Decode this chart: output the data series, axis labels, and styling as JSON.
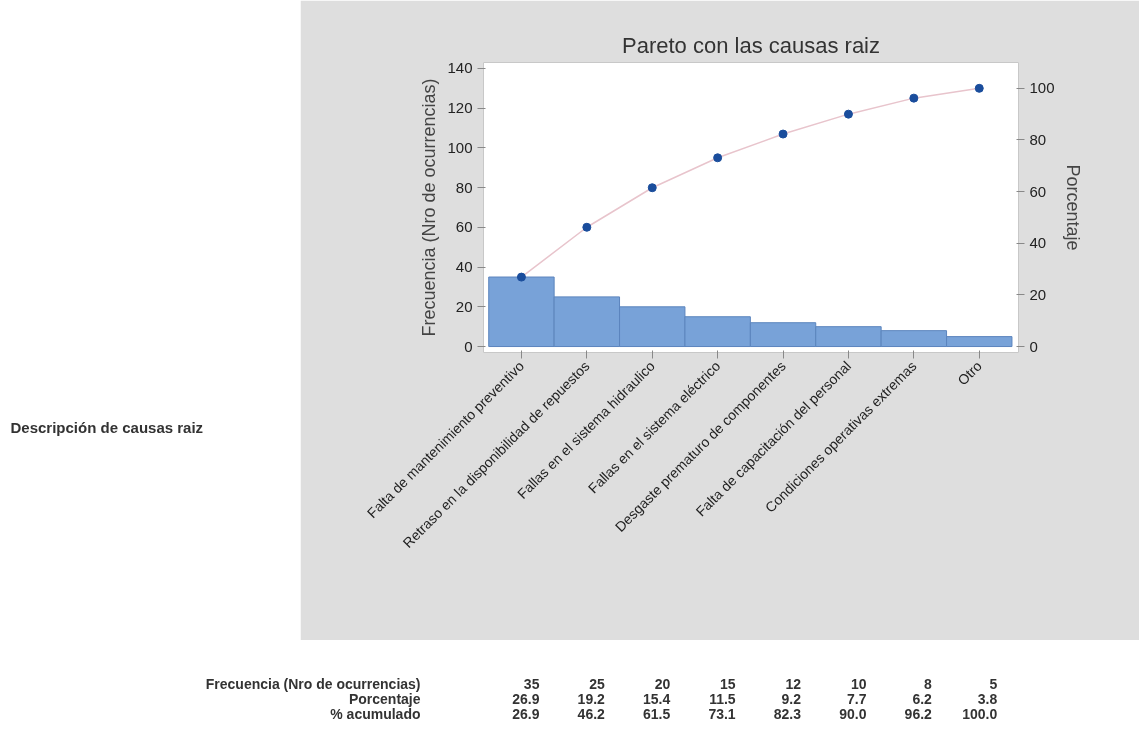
{
  "chart_data": {
    "type": "bar",
    "title": "Pareto con las causas raiz",
    "ylabel": "Frecuencia (Nro de ocurrencias)",
    "y2label": "Porcentaje",
    "categories": [
      "Falta de mantenimiento preventivo",
      "Retraso en la disponibilidad de repuestos",
      "Fallas en el sistema hidraulico",
      "Fallas en el sistema eléctrico",
      "Desgaste prematuro de componentes",
      "Falta de capacitación del personal",
      "Condiciones operativas extremas",
      "Otro"
    ],
    "series": [
      {
        "color": "#78a2d8",
        "values": [
          35,
          25,
          20,
          15,
          12,
          10,
          8,
          5
        ],
        "value_labels": [
          "35",
          "25",
          "20",
          "15",
          "12",
          "10",
          "8",
          "5"
        ]
      },
      {
        "type": "line",
        "axis": "y2",
        "color": "#1a4d9c",
        "marker": "circle",
        "values": [
          26.9,
          46.2,
          61.5,
          73.1,
          82.3,
          90.0,
          96.2,
          100.0
        ],
        "value_labels": [
          "26.9",
          "46.2",
          "61.5",
          "73.1",
          "82.3",
          "90.0",
          "96.2",
          "100.0"
        ]
      }
    ],
    "annotations": [
      "Descripción de causas raiz",
      "Frecuencia (Nro de ocurrencias)",
      "Porcentaje",
      "% acumulado",
      "26.9",
      "19.2",
      "15.4",
      "11.5",
      "9.2",
      "7.7",
      "6.2",
      "3.8"
    ],
    "ylim": [
      -3,
      143
    ],
    "yticks": [
      0,
      20,
      40,
      60,
      80,
      100,
      120,
      140
    ],
    "y2lim": [
      -2.3,
      110
    ],
    "y2ticks": [
      0,
      20,
      40,
      60,
      80,
      100
    ],
    "grid": false
  }
}
